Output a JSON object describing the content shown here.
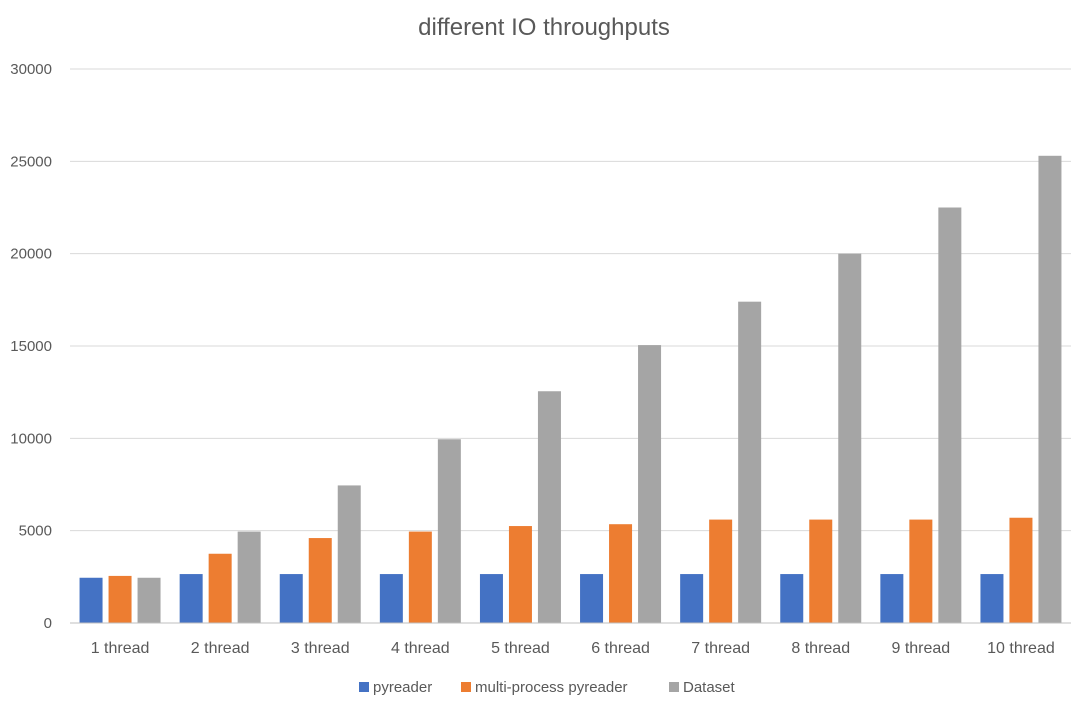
{
  "chart_data": {
    "type": "bar",
    "title": "different IO throughputs",
    "xlabel": "",
    "ylabel": "",
    "ylim": [
      0,
      30000
    ],
    "yticks": [
      0,
      5000,
      10000,
      15000,
      20000,
      25000,
      30000
    ],
    "grid": true,
    "legend_position": "bottom",
    "categories": [
      "1 thread",
      "2 thread",
      "3 thread",
      "4 thread",
      "5 thread",
      "6 thread",
      "7 thread",
      "8 thread",
      "9 thread",
      "10 thread"
    ],
    "series": [
      {
        "name": "pyreader",
        "color": "#4472c4",
        "values": [
          2450,
          2650,
          2650,
          2650,
          2650,
          2650,
          2650,
          2650,
          2650,
          2650
        ]
      },
      {
        "name": "multi-process pyreader",
        "color": "#ed7d31",
        "values": [
          2550,
          3750,
          4600,
          4950,
          5250,
          5350,
          5600,
          5600,
          5600,
          5700
        ]
      },
      {
        "name": "Dataset",
        "color": "#a5a5a5",
        "values": [
          2450,
          4950,
          7450,
          9950,
          12550,
          15050,
          17400,
          20000,
          22500,
          25300
        ]
      }
    ]
  }
}
